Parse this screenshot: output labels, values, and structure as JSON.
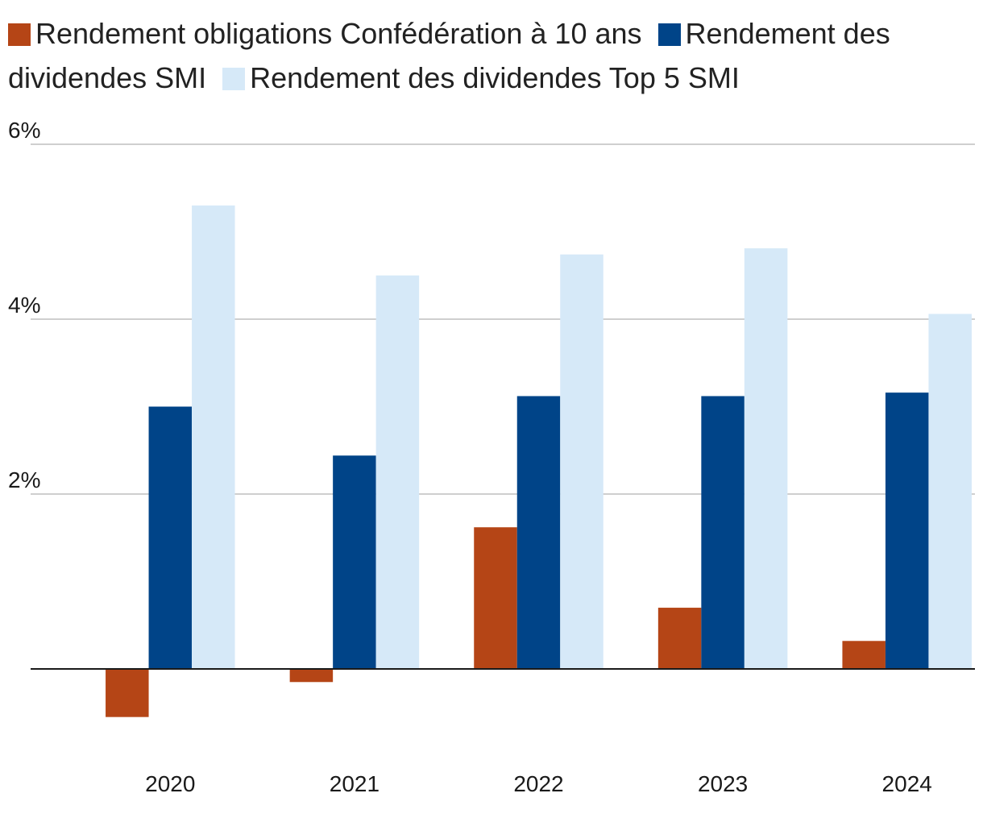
{
  "chart_data": {
    "type": "bar",
    "title": "",
    "xlabel": "",
    "ylabel": "",
    "categories": [
      "2020",
      "2021",
      "2022",
      "2023",
      "2024"
    ],
    "series": [
      {
        "name": "Rendement obligations Confédération à 10 ans",
        "color": "#b54516",
        "values": [
          -0.55,
          -0.15,
          1.62,
          0.7,
          0.32
        ]
      },
      {
        "name": "Rendement des dividendes SMI",
        "color": "#004488",
        "values": [
          3.0,
          2.44,
          3.12,
          3.12,
          3.16
        ]
      },
      {
        "name": "Rendement des dividendes Top 5 SMI",
        "color": "#d6e9f8",
        "values": [
          5.3,
          4.5,
          4.74,
          4.81,
          4.06
        ]
      }
    ],
    "ylim": [
      -1,
      6
    ],
    "yticks": [
      2,
      4,
      6
    ],
    "ytick_labels": [
      "2%",
      "4%",
      "6%"
    ],
    "grid": true,
    "legend_position": "top"
  }
}
